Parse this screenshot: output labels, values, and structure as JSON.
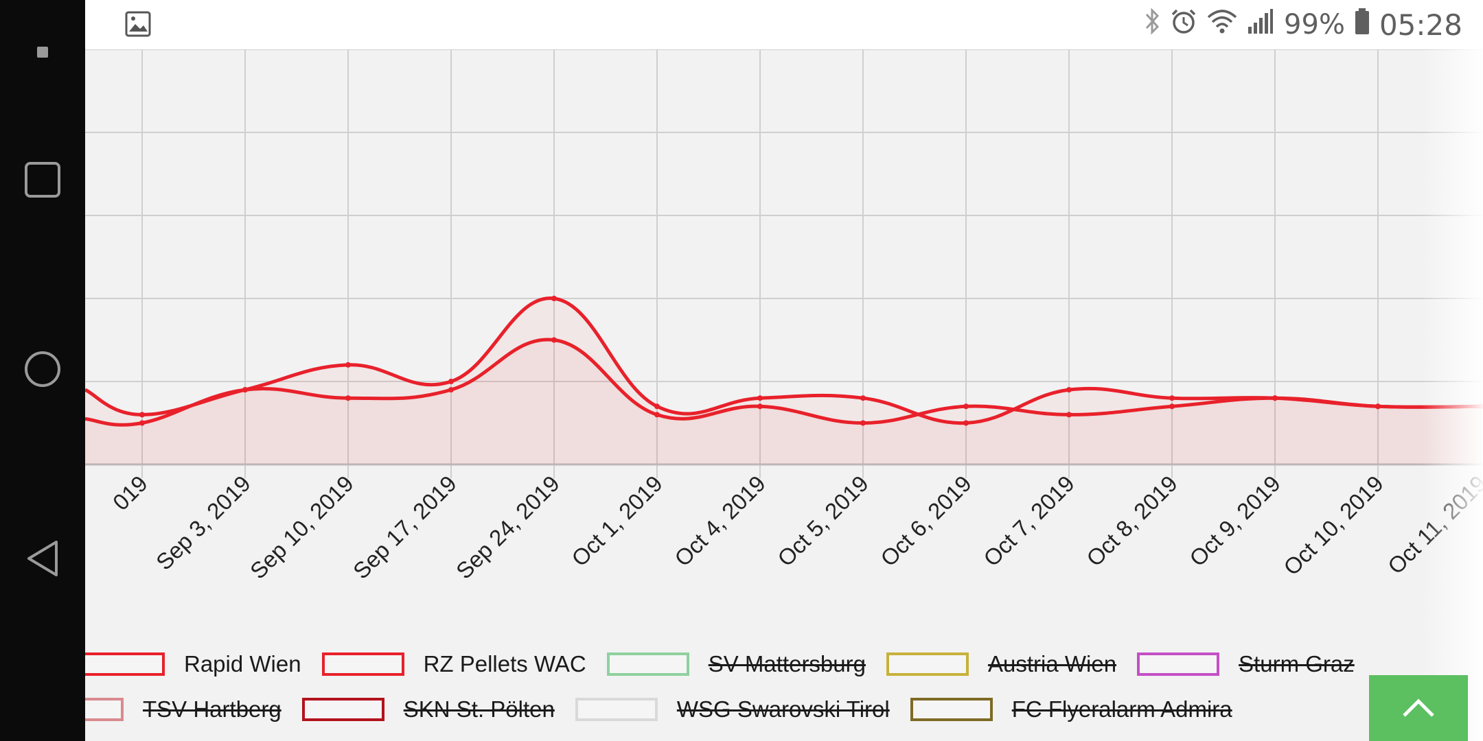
{
  "status_bar": {
    "battery": "99%",
    "time": "05:28",
    "icons": [
      "bluetooth-icon",
      "alarm-icon",
      "wifi-icon",
      "signal-icon",
      "battery-icon"
    ]
  },
  "nav_bar": {
    "icons": [
      "notification-dot-icon",
      "recents-icon",
      "home-icon",
      "back-icon"
    ]
  },
  "chart_data": {
    "type": "line",
    "title": "",
    "xlabel": "",
    "ylabel": "",
    "categories": [
      "...2019",
      "Sep 3, 2019",
      "Sep 10, 2019",
      "Sep 17, 2019",
      "Sep 24, 2019",
      "Oct 1, 2019",
      "Oct 4, 2019",
      "Oct 5, 2019",
      "Oct 6, 2019",
      "Oct 7, 2019",
      "Oct 8, 2019",
      "Oct 9, 2019",
      "Oct 10, 2019",
      "Oct 11, 2019"
    ],
    "tick_labels": [
      "019",
      "Sep 3, 2019",
      "Sep 10, 2019",
      "Sep 17, 2019",
      "Sep 24, 2019",
      "Oct 1, 2019",
      "Oct 4, 2019",
      "Oct 5, 2019",
      "Oct 6, 2019",
      "Oct 7, 2019",
      "Oct 8, 2019",
      "Oct 9, 2019",
      "Oct 10, 2019",
      "Oct 11, 2019"
    ],
    "series": [
      {
        "name": "Rapid Wien",
        "color": "#e8212b",
        "values": [
          5,
          9,
          8,
          9,
          15,
          6,
          7,
          5,
          7,
          6,
          7,
          8,
          7,
          7
        ]
      },
      {
        "name": "RZ Pellets WAC",
        "color": "#e8212b",
        "values": [
          6,
          9,
          12,
          10,
          20,
          7,
          8,
          8,
          5,
          9,
          8,
          8,
          7,
          7
        ]
      }
    ],
    "ylim": [
      0,
      50
    ],
    "grid": true,
    "legend_position": "bottom",
    "legend": [
      {
        "label": "Rapid Wien",
        "color": "#e8212b",
        "hidden": false
      },
      {
        "label": "RZ Pellets WAC",
        "color": "#e8212b",
        "hidden": false
      },
      {
        "label": "SV Mattersburg",
        "color": "#8fd19e",
        "hidden": true
      },
      {
        "label": "Austria Wien",
        "color": "#c7b13a",
        "hidden": true
      },
      {
        "label": "Sturm Graz",
        "color": "#c44fc6",
        "hidden": true
      },
      {
        "label": "TSV Hartberg",
        "color": "#d98a8f",
        "hidden": true
      },
      {
        "label": "SKN St. Pölten",
        "color": "#b3121c",
        "hidden": true
      },
      {
        "label": "WSG Swarovski Tirol",
        "color": "#d9d9d9",
        "hidden": true
      },
      {
        "label": "FC Flyeralarm Admira",
        "color": "#7d6a24",
        "hidden": true
      }
    ]
  }
}
